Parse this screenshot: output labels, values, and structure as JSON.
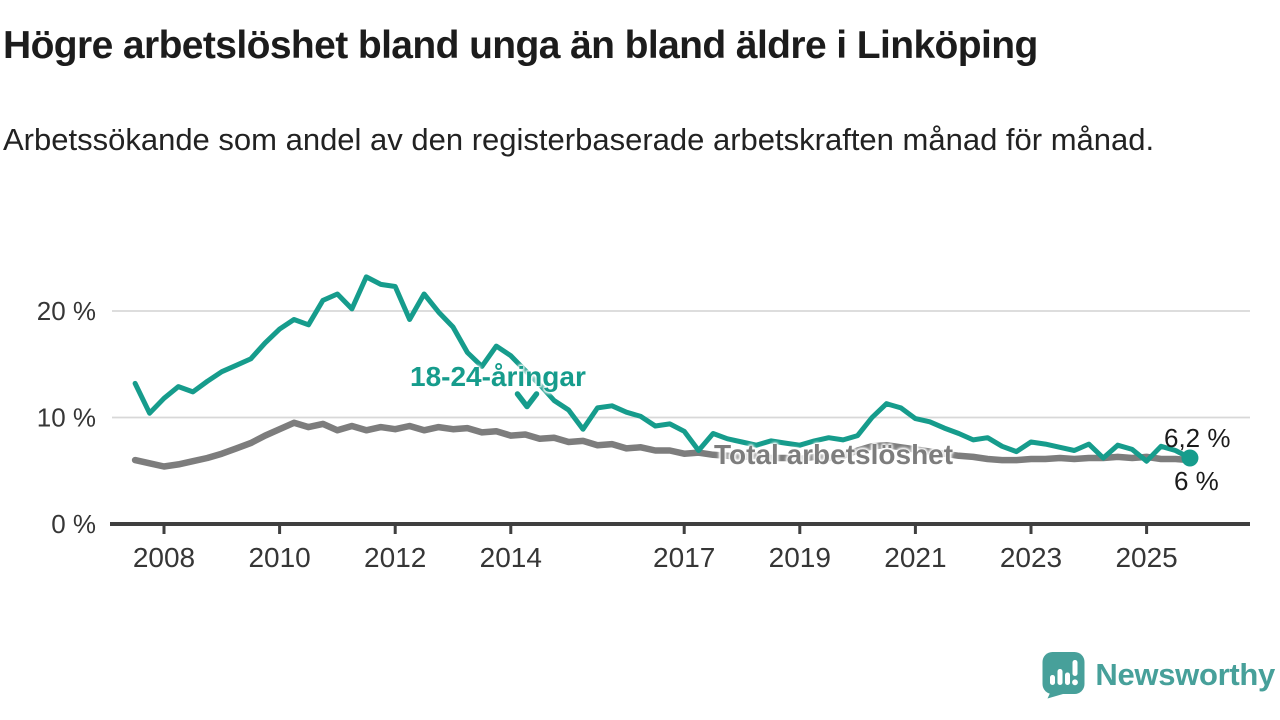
{
  "header": {
    "title": "Högre arbetslöshet bland unga än bland äldre i Linköping",
    "subtitle": "Arbetssökande som andel av den registerbaserade arbetskraften månad för månad."
  },
  "chart_data": {
    "type": "line",
    "unit": "%",
    "grid": "horizontal",
    "x_start": 2007.5,
    "x_step": 0.25,
    "x_range_years": [
      2007.5,
      2025.75
    ],
    "x_axis": {
      "ticks": [
        {
          "value": 2008,
          "label": "2008"
        },
        {
          "value": 2010,
          "label": "2010"
        },
        {
          "value": 2012,
          "label": "2012"
        },
        {
          "value": 2014,
          "label": "2014"
        },
        {
          "value": 2017,
          "label": "2017"
        },
        {
          "value": 2019,
          "label": "2019"
        },
        {
          "value": 2021,
          "label": "2021"
        },
        {
          "value": 2023,
          "label": "2023"
        },
        {
          "value": 2025,
          "label": "2025"
        }
      ]
    },
    "y_axis": {
      "range": [
        0,
        24
      ],
      "ticks": [
        {
          "value": 0,
          "label": "0 %"
        },
        {
          "value": 10,
          "label": "10 %"
        },
        {
          "value": 20,
          "label": "20 %"
        }
      ]
    },
    "series": [
      {
        "name": "18-24-åringar",
        "color": "#169C8C",
        "line_width": 5,
        "values": [
          13.2,
          10.4,
          11.8,
          12.9,
          12.4,
          13.4,
          14.3,
          14.9,
          15.5,
          17.0,
          18.3,
          19.2,
          18.7,
          21.0,
          21.6,
          20.2,
          23.2,
          22.5,
          22.3,
          19.2,
          21.6,
          19.9,
          18.5,
          16.1,
          14.8,
          16.7,
          15.8,
          14.4,
          13.1,
          11.6,
          10.7,
          8.9,
          10.9,
          11.1,
          10.5,
          10.1,
          9.2,
          9.4,
          8.7,
          6.9,
          8.5,
          8.0,
          7.7,
          7.4,
          7.8,
          7.6,
          7.4,
          7.8,
          8.1,
          7.9,
          8.3,
          10.0,
          11.3,
          10.9,
          9.9,
          9.6,
          9.0,
          8.5,
          7.9,
          8.1,
          7.3,
          6.8,
          7.7,
          7.5,
          7.2,
          6.9,
          7.5,
          6.2,
          7.4,
          7.0,
          5.9,
          7.3,
          6.9,
          6.2
        ]
      },
      {
        "name": "Total arbetslöshet",
        "color": "#7D7D7D",
        "line_width": 6.5,
        "values": [
          6.0,
          5.7,
          5.4,
          5.6,
          5.9,
          6.2,
          6.6,
          7.1,
          7.6,
          8.3,
          8.9,
          9.5,
          9.1,
          9.4,
          8.8,
          9.2,
          8.8,
          9.1,
          8.9,
          9.2,
          8.8,
          9.1,
          8.9,
          9.0,
          8.6,
          8.7,
          8.3,
          8.4,
          8.0,
          8.1,
          7.7,
          7.8,
          7.4,
          7.5,
          7.1,
          7.2,
          6.9,
          6.9,
          6.6,
          6.7,
          6.5,
          6.4,
          6.3,
          6.4,
          6.2,
          6.2,
          6.1,
          6.3,
          6.2,
          6.4,
          6.9,
          7.3,
          7.4,
          7.2,
          7.0,
          6.8,
          6.6,
          6.4,
          6.3,
          6.1,
          6.0,
          6.0,
          6.1,
          6.1,
          6.2,
          6.1,
          6.2,
          6.2,
          6.3,
          6.2,
          6.3,
          6.1,
          6.1,
          6.0
        ]
      }
    ],
    "end_labels": {
      "young": "6,2 %",
      "total": "6 %"
    },
    "end_dot": {
      "series_index": 0,
      "radius": 8.5
    },
    "colors": {
      "axis": "#3f3f3f",
      "gridline": "#d8d8d8",
      "tick_text": "#363636"
    }
  },
  "brand": {
    "name": "Newsworthy",
    "color": "#47A09A"
  }
}
